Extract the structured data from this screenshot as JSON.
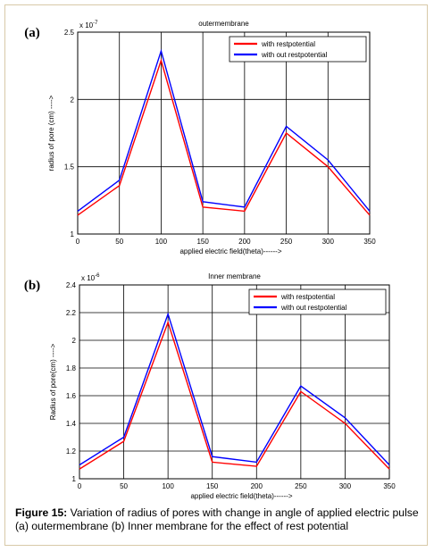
{
  "figure": {
    "caption_label": "Figure 15:",
    "caption_text": " Variation of radius of pores with change in angle of applied electric pulse (a) outermembrane (b) Inner membrane for the effect of rest potential"
  },
  "chart_data": [
    {
      "type": "line",
      "panel_label": "(a)",
      "title": "outermembrane",
      "xlabel": "applied electric field(theta)------>",
      "ylabel": "radius of pore (cm) ---->",
      "y_multiplier": "x 10",
      "y_exponent": "-7",
      "x": [
        0,
        50,
        100,
        150,
        200,
        250,
        300,
        350
      ],
      "x_ticks": [
        "0",
        "50",
        "100",
        "150",
        "200",
        "250",
        "300",
        "350"
      ],
      "xlim": [
        0,
        350
      ],
      "ylim": [
        1,
        2.5
      ],
      "y_ticks": [
        "1",
        "1.5",
        "2",
        "2.5"
      ],
      "grid": true,
      "legend_position": "top-right",
      "series": [
        {
          "name": "with restpotential",
          "color": "#ff0000",
          "values": [
            1.14,
            1.36,
            2.29,
            1.2,
            1.17,
            1.75,
            1.5,
            1.14
          ]
        },
        {
          "name": "with  out restpotential",
          "color": "#0000ff",
          "values": [
            1.17,
            1.4,
            2.36,
            1.24,
            1.2,
            1.8,
            1.55,
            1.17
          ]
        }
      ]
    },
    {
      "type": "line",
      "panel_label": "(b)",
      "title": "Inner membrane",
      "xlabel": "applied electric field(theta)------>",
      "ylabel": "Radius of pore(cm) ---->",
      "y_multiplier": "x 10",
      "y_exponent": "-6",
      "x": [
        0,
        50,
        100,
        150,
        200,
        250,
        300,
        350
      ],
      "x_ticks": [
        "0",
        "50",
        "100",
        "150",
        "200",
        "250",
        "300",
        "350"
      ],
      "xlim": [
        0,
        350
      ],
      "ylim": [
        1,
        2.4
      ],
      "y_ticks": [
        "1",
        "1.2",
        "1.4",
        "1.6",
        "1.8",
        "2",
        "2.2",
        "2.4"
      ],
      "grid": true,
      "legend_position": "top-right",
      "series": [
        {
          "name": "with restpotential",
          "color": "#ff0000",
          "values": [
            1.07,
            1.27,
            2.13,
            1.12,
            1.09,
            1.63,
            1.4,
            1.07
          ]
        },
        {
          "name": "with  out restpotential",
          "color": "#0000ff",
          "values": [
            1.1,
            1.3,
            2.19,
            1.16,
            1.12,
            1.67,
            1.44,
            1.1
          ]
        }
      ]
    }
  ]
}
